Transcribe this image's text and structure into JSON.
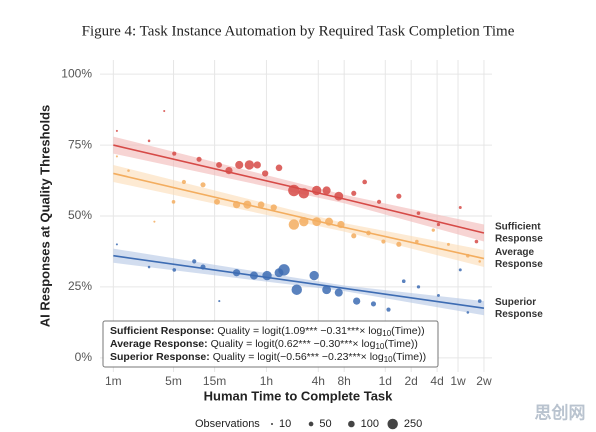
{
  "chart_data": {
    "type": "scatter",
    "title": "Figure 4: Task Instance Automation by Required Task Completion Time",
    "x_label": "Human Time to Complete Task",
    "y_label": "AI Responses at Quality Thresholds",
    "log_x": true,
    "grid": true,
    "xlim": [
      0.7,
      25000
    ],
    "ylim": [
      -5,
      105
    ],
    "xticks": [
      {
        "value": 1,
        "label": "1m"
      },
      {
        "value": 5,
        "label": "5m"
      },
      {
        "value": 15,
        "label": "15m"
      },
      {
        "value": 60,
        "label": "1h"
      },
      {
        "value": 240,
        "label": "4h"
      },
      {
        "value": 480,
        "label": "8h"
      },
      {
        "value": 1440,
        "label": "1d"
      },
      {
        "value": 2880,
        "label": "2d"
      },
      {
        "value": 5760,
        "label": "4d"
      },
      {
        "value": 10080,
        "label": "1w"
      },
      {
        "value": 20160,
        "label": "2w"
      }
    ],
    "yticks": [
      {
        "value": 0,
        "label": "0%"
      },
      {
        "value": 25,
        "label": "25%"
      },
      {
        "value": 50,
        "label": "50%"
      },
      {
        "value": 75,
        "label": "75%"
      },
      {
        "value": 100,
        "label": "100%"
      }
    ],
    "fit_x": [
      1,
      480,
      20160
    ],
    "series": [
      {
        "label_lines": [
          "Sufficient",
          "Response"
        ],
        "color": "#d64a47",
        "band_color": "#f2b8b6",
        "x": [
          1.1,
          2.6,
          3.9,
          5.1,
          9.9,
          16.9,
          22,
          29,
          38,
          47,
          58,
          84,
          125,
          163,
          230,
          300,
          415,
          620,
          830,
          1220,
          2070,
          3500,
          5970,
          10700,
          16500
        ],
        "values": [
          80,
          76.5,
          87,
          72,
          70,
          68,
          66,
          68,
          68,
          68,
          65,
          67,
          59,
          58,
          59,
          59,
          57,
          58,
          62,
          55,
          57,
          51,
          47,
          53,
          41
        ],
        "sizes": [
          10,
          15,
          10,
          40,
          60,
          80,
          120,
          150,
          200,
          120,
          90,
          100,
          300,
          250,
          200,
          150,
          180,
          60,
          50,
          40,
          60,
          30,
          25,
          20,
          30
        ],
        "fit": [
          75,
          56,
          44
        ],
        "band_lower": [
          72,
          54.5,
          41
        ],
        "band_upper": [
          78,
          57.5,
          47
        ]
      },
      {
        "label_lines": [
          "Average",
          "Response"
        ],
        "color": "#f3ad5f",
        "band_color": "#fbdcb6",
        "x": [
          1.1,
          1.5,
          3,
          5,
          6.6,
          11,
          16,
          27,
          36,
          52,
          73,
          125,
          163,
          230,
          320,
          440,
          620,
          920,
          1370,
          2070,
          3350,
          5200,
          7800,
          13100,
          18000
        ],
        "values": [
          71,
          66,
          48,
          55,
          62,
          61,
          55,
          54,
          54,
          54,
          53,
          47,
          48,
          48,
          48,
          47,
          43,
          44,
          41,
          40,
          41,
          45,
          40,
          36,
          34
        ],
        "sizes": [
          10,
          15,
          10,
          30,
          40,
          60,
          80,
          120,
          150,
          100,
          90,
          250,
          200,
          180,
          150,
          120,
          60,
          50,
          40,
          60,
          30,
          25,
          20,
          30,
          15
        ],
        "fit": [
          65,
          46,
          35
        ],
        "band_lower": [
          62,
          44.5,
          32
        ],
        "band_upper": [
          68,
          47.5,
          38
        ]
      },
      {
        "label_lines": [
          "Superior",
          "Response"
        ],
        "color": "#3d6cb3",
        "band_color": "#b4c6e4",
        "x": [
          1.1,
          2.6,
          5.1,
          8.7,
          11,
          17,
          27,
          43,
          61,
          84,
          96,
          135,
          215,
          300,
          415,
          670,
          1050,
          1570,
          2360,
          3500,
          5970,
          10700,
          13100,
          18000
        ],
        "values": [
          40,
          32,
          31,
          34,
          32,
          20,
          30,
          29,
          29,
          30,
          31,
          24,
          29,
          24,
          23,
          20,
          19,
          17,
          27,
          25,
          22,
          31,
          16,
          20
        ],
        "sizes": [
          10,
          15,
          30,
          40,
          60,
          10,
          120,
          150,
          200,
          180,
          300,
          250,
          200,
          180,
          150,
          120,
          60,
          40,
          30,
          25,
          20,
          20,
          15,
          30
        ],
        "fit": [
          36,
          24.5,
          17.5
        ],
        "band_lower": [
          33.5,
          23.5,
          15
        ],
        "band_upper": [
          38.5,
          25.5,
          20
        ]
      }
    ],
    "equations": [
      {
        "label": "Sufficient Response:",
        "before": " Quality = logit(1.09*** −0.31***× log",
        "sub": "10",
        "after": "(Time))"
      },
      {
        "label": "Average Response:",
        "before": " Quality = logit(0.62*** −0.30***× log",
        "sub": "10",
        "after": "(Time))"
      },
      {
        "label": "Superior Response:",
        "before": " Quality = logit(−0.56*** −0.23***× log",
        "sub": "10",
        "after": "(Time))"
      }
    ],
    "size_legend": {
      "title": "Observations",
      "values": [
        10,
        50,
        100,
        250
      ]
    },
    "watermark": "思创网"
  }
}
